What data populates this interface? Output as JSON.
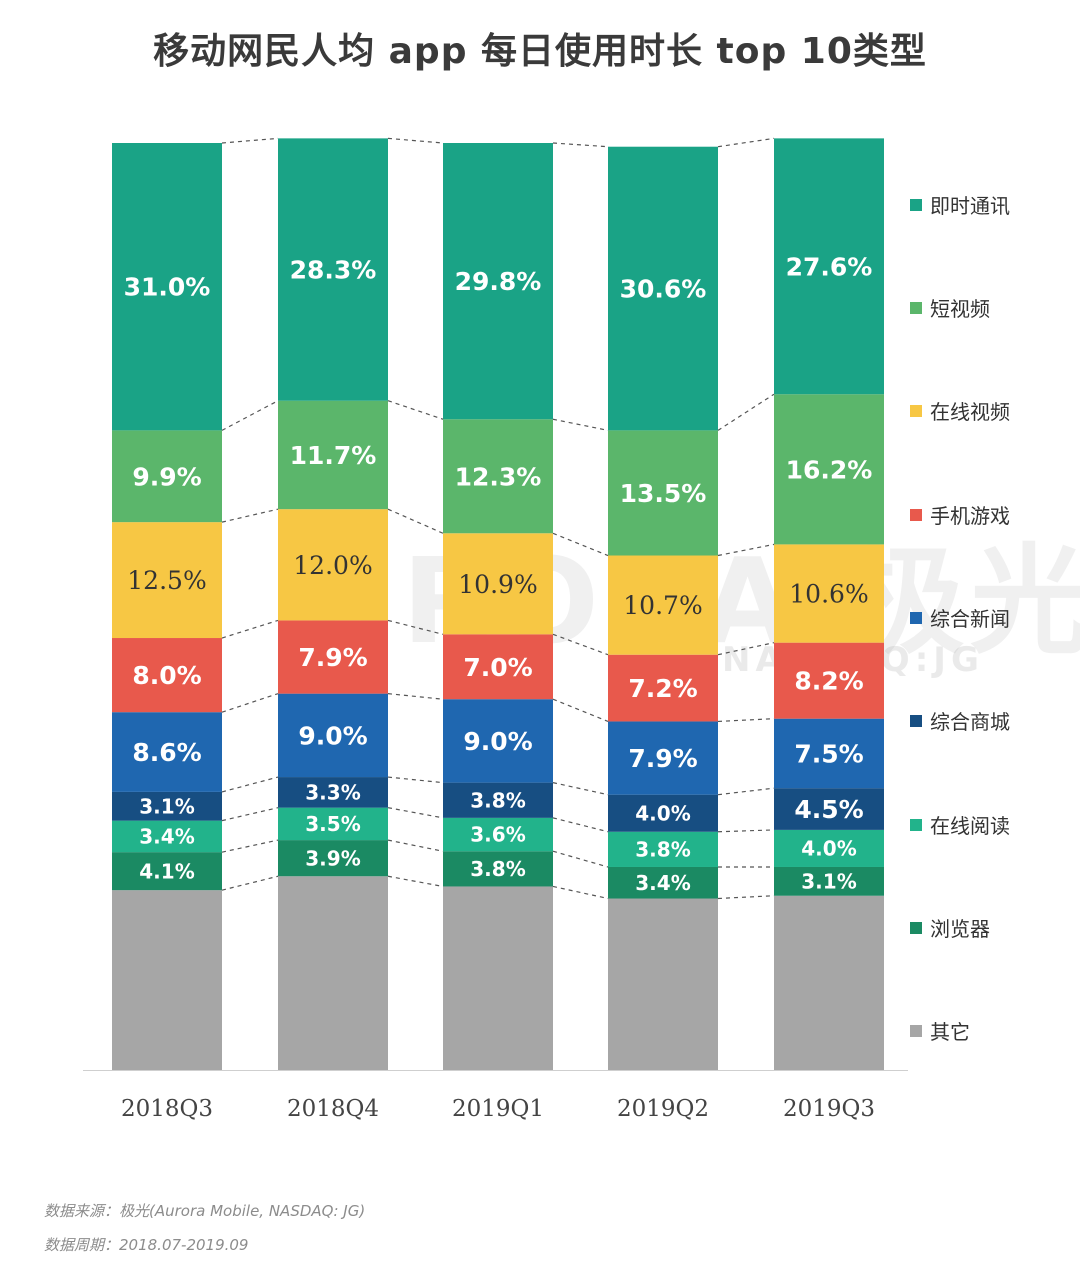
{
  "title": "移动网民人均 app 每日使用时长 top 10类型",
  "watermark": {
    "main": "URORA 极光",
    "sub": "NASDAQ:JG"
  },
  "footer": {
    "source": "数据来源：极光(Aurora Mobile, NASDAQ: JG)",
    "period": "数据周期：2018.07-2019.09"
  },
  "chart_data": {
    "type": "bar",
    "stacked": true,
    "categories": [
      "2018Q3",
      "2018Q4",
      "2019Q1",
      "2019Q2",
      "2019Q3"
    ],
    "ylim": [
      0,
      100
    ],
    "grid": false,
    "legend_position": "right",
    "series": [
      {
        "name": "其它",
        "color": "#a6a6a6",
        "values": [
          19.4,
          20.9,
          19.8,
          18.5,
          18.8
        ],
        "show_label": false
      },
      {
        "name": "浏览器",
        "color": "#1b8a63",
        "values": [
          4.1,
          3.9,
          3.8,
          3.4,
          3.1
        ]
      },
      {
        "name": "在线阅读",
        "color": "#22b38b",
        "values": [
          3.4,
          3.5,
          3.6,
          3.8,
          4.0
        ]
      },
      {
        "name": "综合商城",
        "color": "#174e82",
        "values": [
          3.1,
          3.3,
          3.8,
          4.0,
          4.5
        ]
      },
      {
        "name": "综合新闻",
        "color": "#1f67b0",
        "values": [
          8.6,
          9.0,
          9.0,
          7.9,
          7.5
        ]
      },
      {
        "name": "手机游戏",
        "color": "#e8594c",
        "values": [
          8.0,
          7.9,
          7.0,
          7.2,
          8.2
        ]
      },
      {
        "name": "在线视频",
        "color": "#f7c744",
        "values": [
          12.5,
          12.0,
          10.9,
          10.7,
          10.6
        ],
        "dark_label": true
      },
      {
        "name": "短视频",
        "color": "#5bb66b",
        "values": [
          9.9,
          11.7,
          12.3,
          13.5,
          16.2
        ]
      },
      {
        "name": "即时通讯",
        "color": "#1aa386",
        "values": [
          31.0,
          28.3,
          29.8,
          30.6,
          27.6
        ]
      }
    ],
    "legend_order": [
      "即时通讯",
      "短视频",
      "在线视频",
      "手机游戏",
      "综合新闻",
      "综合商城",
      "在线阅读",
      "浏览器",
      "其它"
    ]
  }
}
